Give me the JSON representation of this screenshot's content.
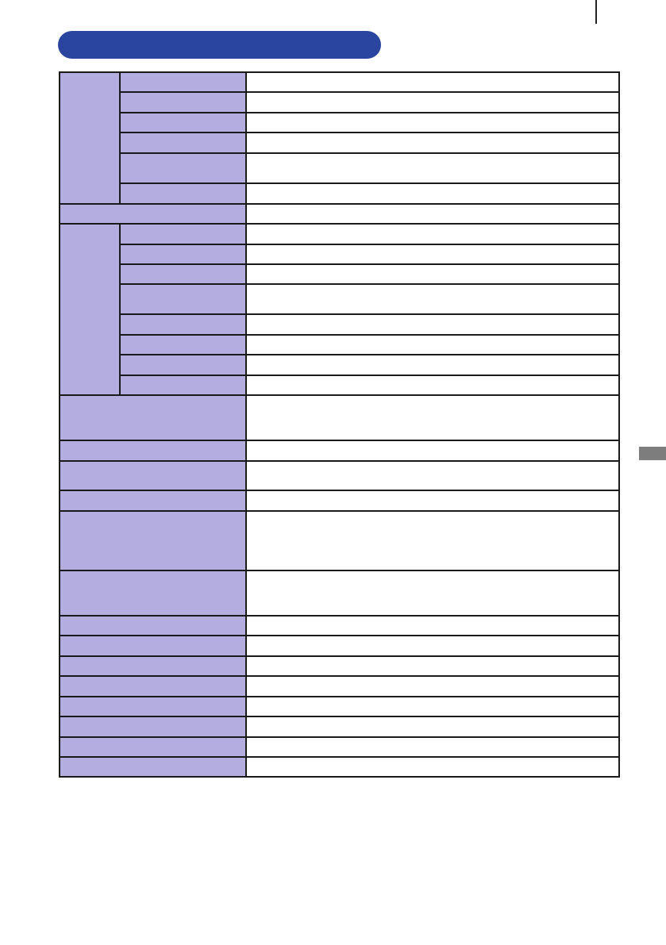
{
  "colors": {
    "banner": "#2a45a0",
    "header_cell": "#b3aedf",
    "side_tab": "#7d7d7d"
  },
  "section_title": "",
  "table": {
    "rows": 29
  }
}
